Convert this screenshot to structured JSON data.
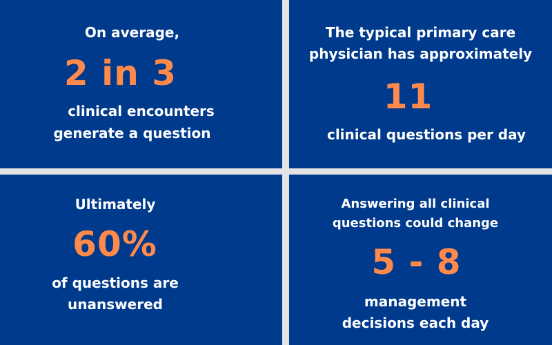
{
  "panels": [
    {
      "intro": "On average,",
      "stat": "2 in 3",
      "desc_1": "clinical encounters",
      "desc_2": "generate a question"
    },
    {
      "intro_1": "The typical primary care",
      "intro_2": "physician has approximately",
      "stat": "11",
      "desc": "clinical questions per day"
    },
    {
      "intro": "Ultimately",
      "stat": "60%",
      "desc_1": "of questions are",
      "desc_2": "unanswered"
    },
    {
      "intro_1": "Answering all clinical",
      "intro_2": "questions could change",
      "stat": "5 - 8",
      "desc_1": "management",
      "desc_2": "decisions each day"
    }
  ],
  "colors": {
    "panel_bg": "#003a8c",
    "stat": "#ff8a4b",
    "text": "#ffffff",
    "divider": "#e4e4e6"
  }
}
